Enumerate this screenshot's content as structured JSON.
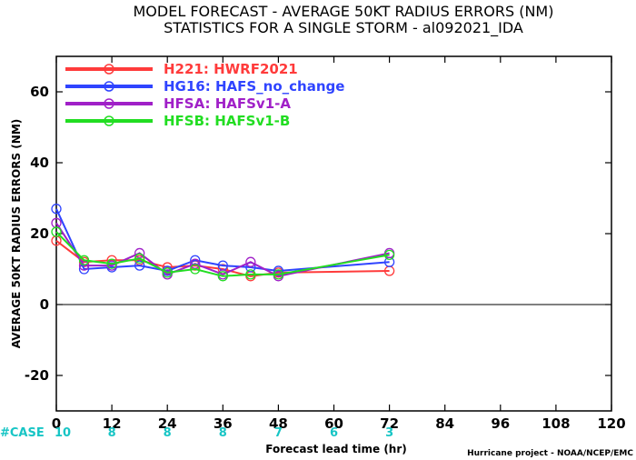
{
  "chart_data": {
    "type": "line",
    "title": "MODEL FORECAST - AVERAGE 50KT RADIUS ERRORS (NM)",
    "subtitle": "STATISTICS FOR A SINGLE STORM - al092021_IDA",
    "xlabel": "Forecast lead time (hr)",
    "ylabel": "AVERAGE 50KT RADIUS ERRORS (NM)",
    "xlim": [
      0,
      120
    ],
    "ylim": [
      -30,
      70
    ],
    "xticks": [
      "0",
      "12",
      "24",
      "36",
      "48",
      "60",
      "72",
      "84",
      "96",
      "108",
      "120"
    ],
    "yticks": [
      "60",
      "40",
      "20",
      "0",
      "-20"
    ],
    "zero_line": true,
    "grid": false,
    "legend_position": "top-left",
    "series": [
      {
        "name": "H221: HWRF2021",
        "color": "#ff3b3b",
        "x": [
          0,
          6,
          12,
          18,
          24,
          30,
          36,
          42,
          48,
          72
        ],
        "y": [
          18,
          12,
          12.5,
          12.5,
          10.5,
          11,
          10,
          8,
          9,
          9.5
        ]
      },
      {
        "name": "HG16: HAFS_no_change",
        "color": "#2f44ff",
        "x": [
          0,
          6,
          12,
          18,
          24,
          30,
          36,
          42,
          48,
          72
        ],
        "y": [
          27,
          10,
          10.5,
          11,
          9.5,
          12.5,
          11,
          10.5,
          9.5,
          12
        ]
      },
      {
        "name": "HFSA: HAFSv1-A",
        "color": "#a020c8",
        "x": [
          0,
          6,
          12,
          18,
          24,
          30,
          36,
          42,
          48,
          72
        ],
        "y": [
          23,
          11,
          11,
          14.5,
          8.5,
          11.5,
          8.5,
          12,
          8,
          14.5
        ]
      },
      {
        "name": "HFSB: HAFSv1-B",
        "color": "#22dd22",
        "x": [
          0,
          6,
          12,
          18,
          24,
          30,
          36,
          42,
          48,
          72
        ],
        "y": [
          20.5,
          12.5,
          11.5,
          13,
          9,
          10,
          8,
          8.5,
          8.5,
          14
        ]
      }
    ],
    "cases": {
      "label": "#CASE",
      "x": [
        0,
        12,
        24,
        36,
        48,
        60,
        72
      ],
      "values": [
        "10",
        "8",
        "8",
        "8",
        "7",
        "6",
        "3"
      ]
    },
    "credit": "Hurricane project - NOAA/NCEP/EMC"
  }
}
